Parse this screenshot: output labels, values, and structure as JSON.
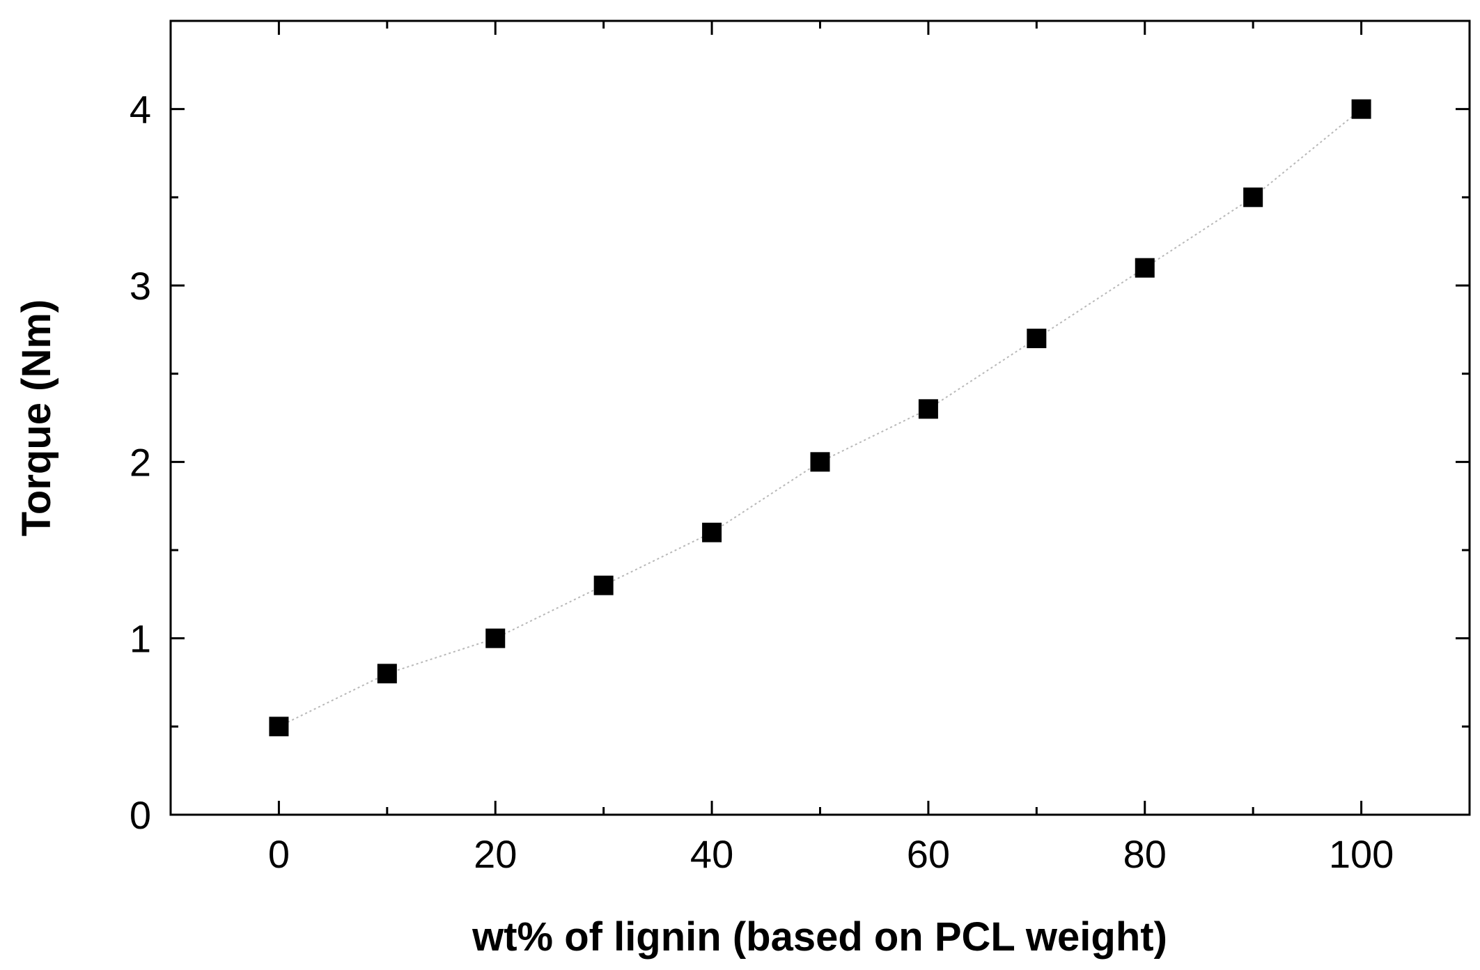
{
  "chart_data": {
    "type": "scatter",
    "title": "",
    "xlabel": "wt% of lignin (based on PCL weight)",
    "ylabel": "Torque (Nm)",
    "xlim": [
      -10,
      110
    ],
    "ylim": [
      0,
      4.5
    ],
    "x_ticks": [
      0,
      20,
      40,
      60,
      80,
      100
    ],
    "x_minor_ticks": [
      -10,
      10,
      30,
      50,
      70,
      90,
      110
    ],
    "y_ticks": [
      0,
      1,
      2,
      3,
      4
    ],
    "y_minor_ticks": [
      0.5,
      1.5,
      2.5,
      3.5,
      4.5
    ],
    "x_tick_labels": [
      "0",
      "20",
      "40",
      "60",
      "80",
      "100"
    ],
    "y_tick_labels": [
      "0",
      "1",
      "2",
      "3",
      "4"
    ],
    "grid": false,
    "legend": "none",
    "series": [
      {
        "name": "Torque",
        "marker": "square",
        "color": "#000000",
        "connector": "dotted",
        "connector_color": "#b8b8b8",
        "x": [
          0,
          10,
          20,
          30,
          40,
          50,
          60,
          70,
          80,
          90,
          100
        ],
        "y": [
          0.5,
          0.8,
          1.0,
          1.3,
          1.6,
          2.0,
          2.3,
          2.7,
          3.1,
          3.5,
          4.0
        ]
      }
    ]
  }
}
